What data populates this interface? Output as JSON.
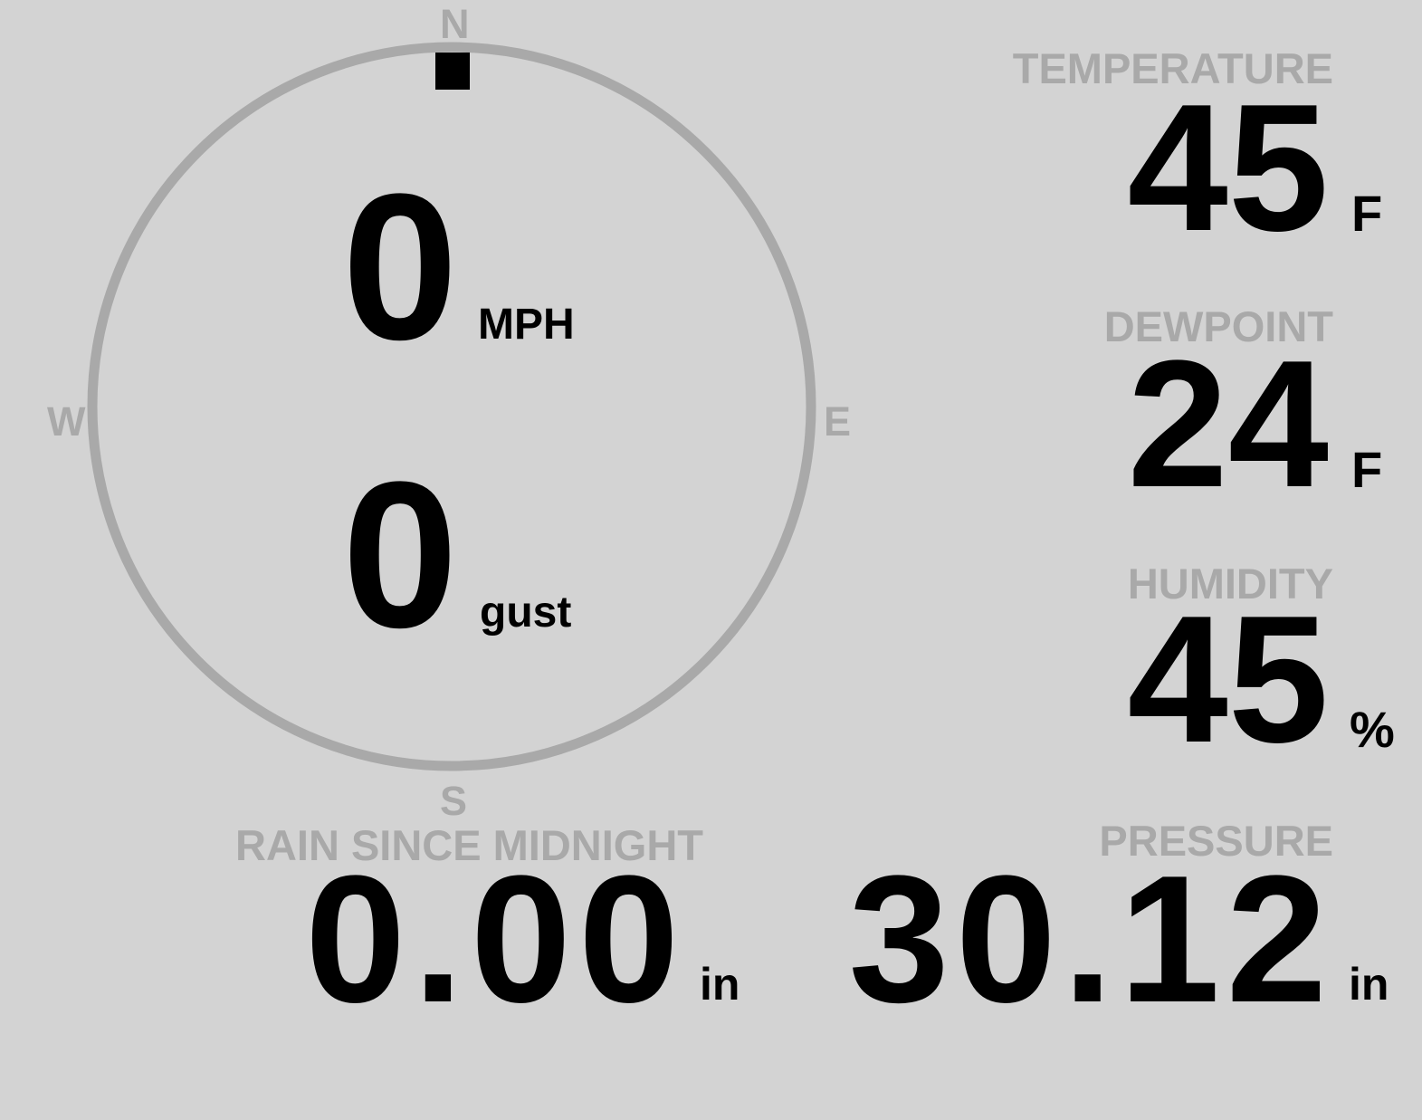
{
  "colors": {
    "background": "#d3d3d3",
    "label": "#a9a9a9",
    "value": "#000000"
  },
  "wind": {
    "compass": {
      "north": "N",
      "south": "S",
      "east": "E",
      "west": "W"
    },
    "direction_degrees": 0,
    "speed": "0",
    "speed_unit": "MPH",
    "gust": "0",
    "gust_unit": "gust"
  },
  "temperature": {
    "label": "TEMPERATURE",
    "value": "45",
    "unit": "F"
  },
  "dewpoint": {
    "label": "DEWPOINT",
    "value": "24",
    "unit": "F"
  },
  "humidity": {
    "label": "HUMIDITY",
    "value": "45",
    "unit": "%"
  },
  "rain": {
    "label": "RAIN SINCE MIDNIGHT",
    "value": "0.00",
    "unit": "in"
  },
  "pressure": {
    "label": "PRESSURE",
    "value": "30.12",
    "unit": "in"
  }
}
